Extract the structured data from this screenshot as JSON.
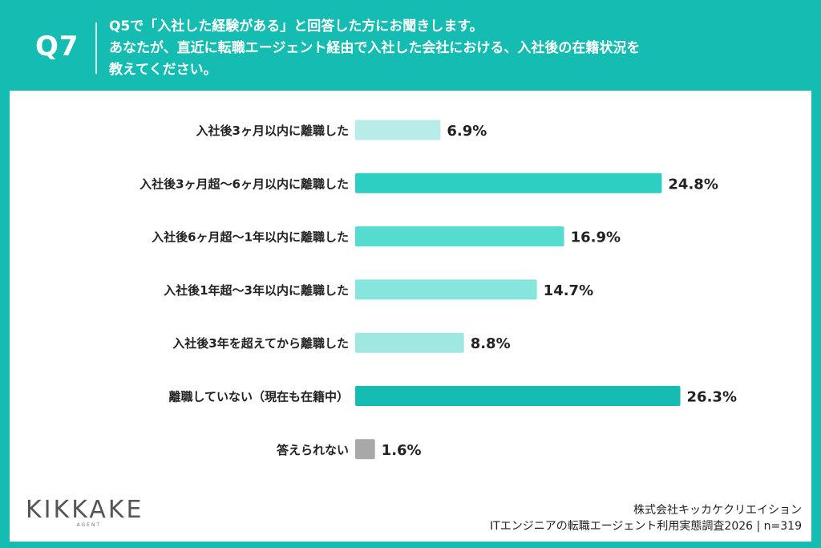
{
  "header": {
    "question_number": "Q7",
    "question_lines": [
      "Q5で「入社した経験がある」と回答した方にお聞きします。",
      "あなたが、直近に転職エージェント経由で入社した会社における、入社後の在籍状況を",
      "教えてください。"
    ]
  },
  "chart_data": {
    "type": "bar",
    "orientation": "horizontal",
    "categories": [
      "入社後3ヶ月以内に離職した",
      "入社後3ヶ月超〜6ヶ月以内に離職した",
      "入社後6ヶ月超〜1年以内に離職した",
      "入社後1年超〜3年以内に離職した",
      "入社後3年を超えてから離職した",
      "離職していない（現在も在籍中）",
      "答えられない"
    ],
    "values": [
      6.9,
      24.8,
      16.9,
      14.7,
      8.8,
      26.3,
      1.6
    ],
    "value_labels": [
      "6.9%",
      "24.8%",
      "16.9%",
      "14.7%",
      "8.8%",
      "26.3%",
      "1.6%"
    ],
    "colors": [
      "#b8ece8",
      "#2ecfc3",
      "#56dccf",
      "#86e5dd",
      "#9ee8e1",
      "#14bcb1",
      "#a8a8a8"
    ],
    "xlim": [
      0,
      30
    ]
  },
  "footer": {
    "logo_text": "KIKKAKE",
    "logo_sub": "AGENT",
    "company": "株式会社キッカケクリエイション",
    "survey": "ITエンジニアの転職エージェント利用実態調査2026 | n=319"
  }
}
